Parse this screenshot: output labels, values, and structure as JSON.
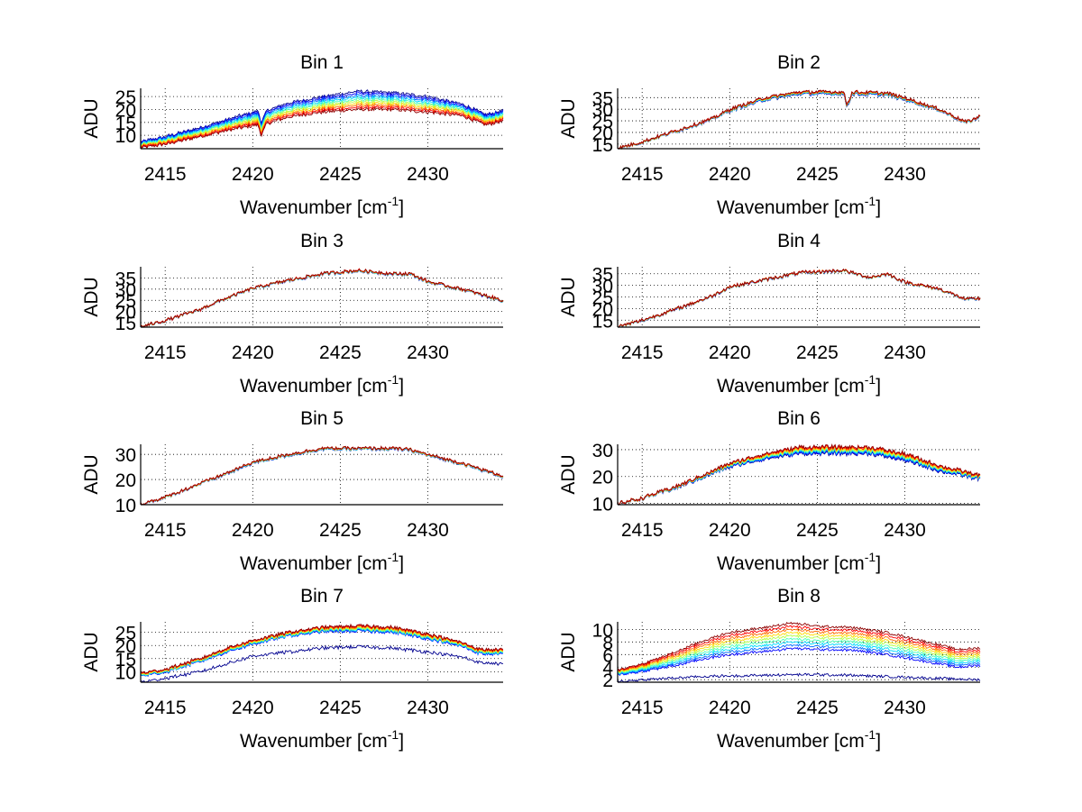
{
  "chart_data": [
    {
      "type": "line",
      "title": "Bin 1",
      "xlabel": "Wavenumber [cm",
      "xlabel_sup": "-1",
      "xlabel_end": "]",
      "ylabel": "ADU",
      "xlim": [
        2413.6,
        2434.3
      ],
      "ylim": [
        4.8,
        28.2
      ],
      "xticks": [
        2415,
        2420,
        2425,
        2430
      ],
      "xtick_labels": [
        "2415",
        "2420",
        "2425",
        "2430"
      ],
      "yticks": [
        10,
        15,
        20,
        25
      ],
      "ytick_labels": [
        "10",
        "15",
        "20",
        "25"
      ],
      "grid": true,
      "n_series": 10,
      "colormap": "jet",
      "x": [
        2413.6,
        2415,
        2417,
        2419,
        2420.3,
        2420.5,
        2420.8,
        2422,
        2424,
        2426,
        2428,
        2430,
        2432,
        2433.3,
        2434.3
      ],
      "profile_top": [
        7.5,
        9.5,
        13,
        17,
        19.5,
        15,
        19.5,
        22.5,
        25,
        27,
        26.5,
        25,
        22,
        18,
        19.5
      ],
      "profile_bottom": [
        5.2,
        6.5,
        9.5,
        12.5,
        14,
        10,
        14.5,
        17,
        19,
        20,
        20,
        19,
        17.5,
        14,
        15.5
      ],
      "noise": 0.6
    },
    {
      "type": "line",
      "title": "Bin 2",
      "xlabel": "Wavenumber [cm",
      "xlabel_sup": "-1",
      "xlabel_end": "]",
      "ylabel": "ADU",
      "xlim": [
        2413.6,
        2434.3
      ],
      "ylim": [
        13,
        39
      ],
      "xticks": [
        2415,
        2420,
        2425,
        2430
      ],
      "xtick_labels": [
        "2415",
        "2420",
        "2425",
        "2430"
      ],
      "yticks": [
        15,
        20,
        25,
        30,
        35
      ],
      "ytick_labels": [
        "15",
        "20",
        "25",
        "30",
        "35"
      ],
      "grid": true,
      "n_series": 10,
      "colormap": "jet",
      "x": [
        2413.6,
        2415,
        2417,
        2419,
        2420,
        2422,
        2424,
        2426,
        2426.5,
        2426.7,
        2427,
        2429,
        2430,
        2432,
        2433.5,
        2434.3
      ],
      "profile_top": [
        13.2,
        16,
        21,
        26,
        30,
        35,
        37.5,
        37.5,
        37.5,
        32,
        37.5,
        37,
        35,
        30,
        24.5,
        27
      ],
      "profile_bottom": [
        13,
        15.7,
        20.5,
        25.5,
        29.3,
        34,
        36.5,
        36.5,
        36.5,
        31,
        36.5,
        36,
        34,
        29.5,
        24,
        26.5
      ],
      "noise": 0.7
    },
    {
      "type": "line",
      "title": "Bin 3",
      "xlabel": "Wavenumber [cm",
      "xlabel_sup": "-1",
      "xlabel_end": "]",
      "ylabel": "ADU",
      "xlim": [
        2413.6,
        2434.3
      ],
      "ylim": [
        13,
        40
      ],
      "xticks": [
        2415,
        2420,
        2425,
        2430
      ],
      "xtick_labels": [
        "2415",
        "2420",
        "2425",
        "2430"
      ],
      "yticks": [
        15,
        20,
        25,
        30,
        35
      ],
      "ytick_labels": [
        "15",
        "20",
        "25",
        "30",
        "35"
      ],
      "grid": true,
      "n_series": 10,
      "colormap": "jet",
      "x": [
        2413.6,
        2415,
        2417,
        2418,
        2420,
        2422,
        2424,
        2426,
        2428,
        2429,
        2430,
        2432,
        2434.3
      ],
      "profile_top": [
        13.2,
        16,
        21,
        24.5,
        30.5,
        34,
        37,
        38.5,
        37,
        37,
        33.5,
        30,
        25
      ],
      "profile_bottom": [
        13,
        15.8,
        20.8,
        24.2,
        30.2,
        33.6,
        36.6,
        38,
        36.6,
        36.5,
        33,
        29.6,
        24.6
      ],
      "noise": 0.7
    },
    {
      "type": "line",
      "title": "Bin 4",
      "xlabel": "Wavenumber [cm",
      "xlabel_sup": "-1",
      "xlabel_end": "]",
      "ylabel": "ADU",
      "xlim": [
        2413.6,
        2434.3
      ],
      "ylim": [
        12,
        38
      ],
      "xticks": [
        2415,
        2420,
        2425,
        2430
      ],
      "xtick_labels": [
        "2415",
        "2420",
        "2425",
        "2430"
      ],
      "yticks": [
        15,
        20,
        25,
        30,
        35
      ],
      "ytick_labels": [
        "15",
        "20",
        "25",
        "30",
        "35"
      ],
      "grid": true,
      "n_series": 10,
      "colormap": "jet",
      "x": [
        2413.6,
        2415,
        2417,
        2419,
        2420,
        2422,
        2424,
        2426.5,
        2428,
        2429,
        2430,
        2432,
        2433.5,
        2434.3
      ],
      "profile_top": [
        12.2,
        15,
        20,
        25.5,
        29.5,
        32.5,
        35.5,
        36.5,
        33.5,
        35,
        31.5,
        28.5,
        24,
        24.5
      ],
      "profile_bottom": [
        12,
        14.7,
        19.7,
        25.2,
        29.2,
        32.2,
        35.2,
        36.2,
        33.2,
        34.7,
        31.2,
        28.2,
        23.7,
        24.2
      ],
      "noise": 0.7
    },
    {
      "type": "line",
      "title": "Bin 5",
      "xlabel": "Wavenumber [cm",
      "xlabel_sup": "-1",
      "xlabel_end": "]",
      "ylabel": "ADU",
      "xlim": [
        2413.6,
        2434.3
      ],
      "ylim": [
        10,
        34
      ],
      "xticks": [
        2415,
        2420,
        2425,
        2430
      ],
      "xtick_labels": [
        "2415",
        "2420",
        "2425",
        "2430"
      ],
      "yticks": [
        10,
        20,
        30
      ],
      "ytick_labels": [
        "10",
        "20",
        "30"
      ],
      "grid": true,
      "n_series": 10,
      "colormap": "jet",
      "x": [
        2413.6,
        2415,
        2417,
        2419,
        2420,
        2422,
        2424,
        2426,
        2428,
        2429,
        2430,
        2432,
        2434.3
      ],
      "profile_top": [
        10.3,
        13,
        18.5,
        24,
        27,
        30,
        32.5,
        32.5,
        32.5,
        32,
        30,
        26.5,
        21.5
      ],
      "profile_bottom": [
        10,
        12.7,
        18.2,
        23.5,
        26.5,
        29.5,
        32,
        32,
        32,
        31.5,
        29.5,
        26,
        21
      ],
      "noise": 0.6
    },
    {
      "type": "line",
      "title": "Bin 6",
      "xlabel": "Wavenumber [cm",
      "xlabel_sup": "-1",
      "xlabel_end": "]",
      "ylabel": "ADU",
      "xlim": [
        2413.6,
        2434.3
      ],
      "ylim": [
        9.5,
        32
      ],
      "xticks": [
        2415,
        2420,
        2425,
        2430
      ],
      "xtick_labels": [
        "2415",
        "2420",
        "2425",
        "2430"
      ],
      "yticks": [
        10,
        20,
        30
      ],
      "ytick_labels": [
        "10",
        "20",
        "30"
      ],
      "grid": true,
      "n_series": 10,
      "colormap": "jet",
      "x": [
        2413.6,
        2415,
        2417,
        2419,
        2420,
        2422,
        2424,
        2426,
        2428,
        2430,
        2432,
        2434.3
      ],
      "profile_top": [
        10,
        12,
        16.5,
        22,
        25,
        28.5,
        31,
        31,
        31,
        28.5,
        24,
        20.5
      ],
      "profile_bottom": [
        9.8,
        11.7,
        15.8,
        21,
        23.5,
        26.5,
        28.5,
        28.5,
        28.5,
        26,
        22,
        19
      ],
      "noise": 0.7
    },
    {
      "type": "line",
      "title": "Bin 7",
      "xlabel": "Wavenumber [cm",
      "xlabel_sup": "-1",
      "xlabel_end": "]",
      "ylabel": "ADU",
      "xlim": [
        2413.6,
        2434.3
      ],
      "ylim": [
        6,
        29
      ],
      "xticks": [
        2415,
        2420,
        2425,
        2430
      ],
      "xtick_labels": [
        "2415",
        "2420",
        "2425",
        "2430"
      ],
      "yticks": [
        10,
        15,
        20,
        25
      ],
      "ytick_labels": [
        "10",
        "15",
        "20",
        "25"
      ],
      "grid": true,
      "n_series": 10,
      "colormap": "jet",
      "x": [
        2413.6,
        2415,
        2417,
        2418.5,
        2420,
        2422,
        2424,
        2426,
        2428,
        2430,
        2432,
        2433,
        2434.3
      ],
      "profile_top": [
        9.5,
        11,
        15,
        19,
        22,
        25,
        27,
        27.5,
        27,
        24.5,
        21,
        18.5,
        18.5
      ],
      "profile_bottom": [
        8.3,
        9.8,
        13.8,
        17.5,
        20.5,
        23.5,
        25.3,
        25.5,
        25,
        22.5,
        19.5,
        16.8,
        16.8
      ],
      "low_series": [
        6,
        7.5,
        10,
        13,
        16,
        17.5,
        19,
        19.5,
        19,
        17.5,
        15.5,
        13.5,
        13
      ],
      "noise": 0.6
    },
    {
      "type": "line",
      "title": "Bin 8",
      "xlabel": "Wavenumber [cm",
      "xlabel_sup": "-1",
      "xlabel_end": "]",
      "ylabel": "ADU",
      "xlim": [
        2413.6,
        2434.3
      ],
      "ylim": [
        1.6,
        11.2
      ],
      "xticks": [
        2415,
        2420,
        2425,
        2430
      ],
      "xtick_labels": [
        "2415",
        "2420",
        "2425",
        "2430"
      ],
      "yticks": [
        2,
        4,
        6,
        8,
        10
      ],
      "ytick_labels": [
        "2",
        "4",
        "6",
        "8",
        "10"
      ],
      "grid": true,
      "n_series": 10,
      "colormap": "jet",
      "x": [
        2413.6,
        2415,
        2417,
        2418.5,
        2420,
        2422,
        2423.5,
        2425,
        2427,
        2429,
        2431,
        2433,
        2434.3
      ],
      "profile_top": [
        3.6,
        4.5,
        6.5,
        8.2,
        9.5,
        10.3,
        11,
        10.5,
        10.3,
        9.5,
        8.2,
        6.8,
        7
      ],
      "profile_bottom": [
        2.8,
        3.3,
        4.3,
        5.3,
        6,
        6.5,
        7,
        6.8,
        6.7,
        6,
        5,
        4,
        4.3
      ],
      "low_series": [
        1.7,
        2,
        2.3,
        2.5,
        2.6,
        2.7,
        2.8,
        2.8,
        2.7,
        2.5,
        2.3,
        2.1,
        2
      ],
      "noise": 0.2
    }
  ]
}
